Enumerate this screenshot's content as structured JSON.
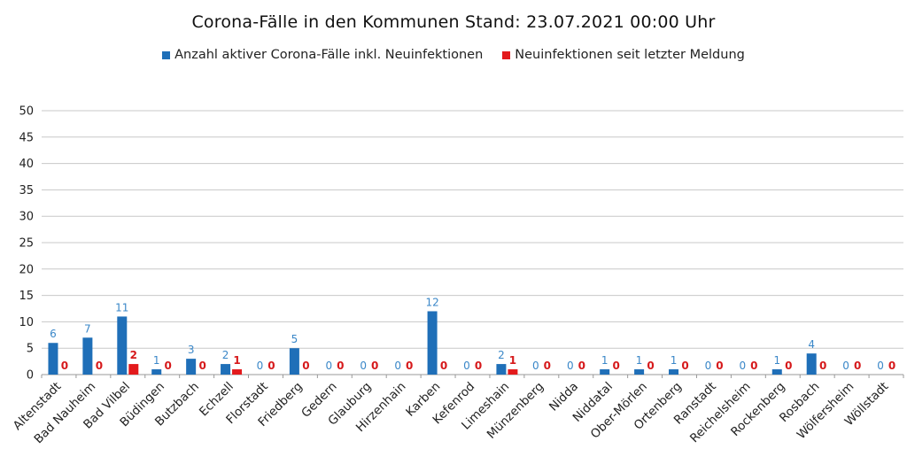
{
  "chart_data": {
    "type": "bar",
    "title": "Corona-Fälle in den Kommunen Stand: 23.07.2021 00:00 Uhr",
    "categories": [
      "Altenstadt",
      "Bad Nauheim",
      "Bad Vilbel",
      "Büdingen",
      "Butzbach",
      "Echzell",
      "Florstadt",
      "Friedberg",
      "Gedern",
      "Glauburg",
      "Hirzenhain",
      "Karben",
      "Kefenrod",
      "Limeshain",
      "Münzenberg",
      "Nidda",
      "Niddatal",
      "Ober-Mörlen",
      "Ortenberg",
      "Ranstadt",
      "Reichelsheim",
      "Rockenberg",
      "Rosbach",
      "Wölfersheim",
      "Wöllstadt"
    ],
    "series": [
      {
        "name": "Anzahl aktiver Corona-Fälle inkl. Neuinfektionen",
        "color": "#1f6fb8",
        "values": [
          6,
          7,
          11,
          1,
          3,
          2,
          0,
          5,
          0,
          0,
          0,
          12,
          0,
          2,
          0,
          0,
          1,
          1,
          1,
          0,
          0,
          1,
          4,
          0,
          0
        ]
      },
      {
        "name": "Neuinfektionen seit letzter Meldung",
        "color": "#e31a1c",
        "values": [
          0,
          0,
          2,
          0,
          0,
          1,
          0,
          0,
          0,
          0,
          0,
          0,
          0,
          1,
          0,
          0,
          0,
          0,
          0,
          0,
          0,
          0,
          0,
          0,
          0
        ]
      }
    ],
    "ylim": [
      0,
      50
    ],
    "yticks": [
      0,
      5,
      10,
      15,
      20,
      25,
      30,
      35,
      40,
      45,
      50
    ],
    "grid": true,
    "legend_position": "top-center",
    "xlabel": "",
    "ylabel": ""
  }
}
